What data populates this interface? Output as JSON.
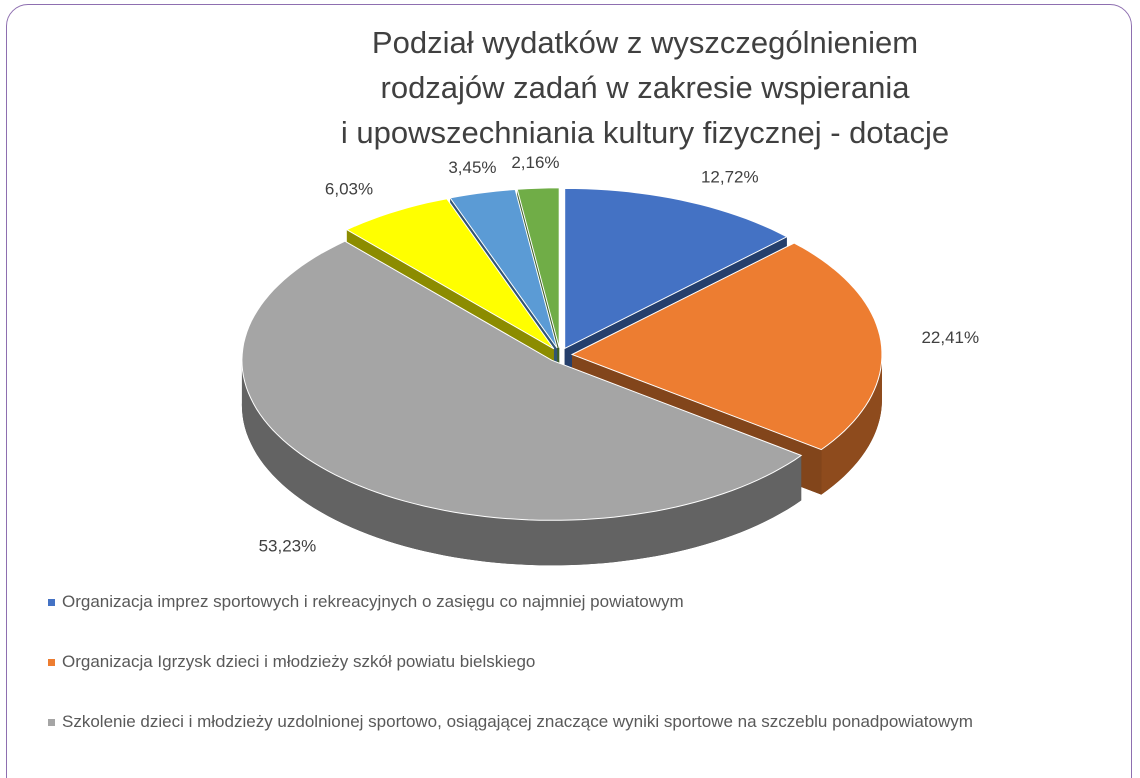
{
  "chart_data": {
    "type": "pie",
    "title": [
      "Podział wydatków z wyszczególnieniem",
      "rodzajów zadań w zakresie wspierania",
      "i upowszechniania kultury fizycznej - dotacje"
    ],
    "categories": [
      "Organizacja imprez sportowych i rekreacyjnych o zasięgu co najmniej powiatowym",
      "Organizacja Igrzysk dzieci i młodzieży szkół powiatu bielskiego",
      "Szkolenie dzieci i młodzieży uzdolnionej sportowo, osiągającej znaczące wyniki sportowe na szczeblu ponadpowiatowym",
      null,
      null,
      null
    ],
    "values": [
      12.72,
      22.41,
      53.23,
      6.03,
      3.45,
      2.16
    ],
    "value_labels": [
      "12,72%",
      "22,41%",
      "53,23%",
      "6,03%",
      "3,45%",
      "2,16%"
    ],
    "colors": [
      "#4472c4",
      "#ed7d31",
      "#a5a5a5",
      "#ffff00",
      "#5b9bd5",
      "#70ad47"
    ],
    "legend": "bottom"
  }
}
